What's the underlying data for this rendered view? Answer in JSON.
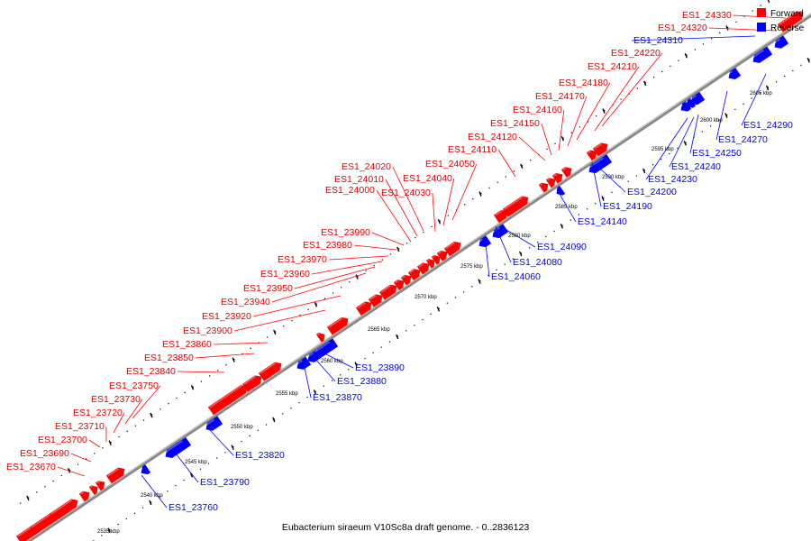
{
  "caption": "Eubacterium siraeum V10Sc8a draft genome. - 0..2836123",
  "legend": [
    {
      "label": "Forward",
      "color": "#ff0000"
    },
    {
      "label": "Reverse",
      "color": "#0000ff"
    }
  ],
  "colors": {
    "forward": "#ff0000",
    "reverse": "#0000ff",
    "axis": "#888888"
  },
  "forward_labels": [
    "ES1_24330",
    "ES1_24320",
    "ES1_24220",
    "ES1_24210",
    "ES1_24180",
    "ES1_24170",
    "ES1_24160",
    "ES1_24150",
    "ES1_24120",
    "ES1_24110",
    "ES1_24050",
    "ES1_24040",
    "ES1_24030",
    "ES1_24020",
    "ES1_24010",
    "ES1_24000",
    "ES1_23990",
    "ES1_23980",
    "ES1_23970",
    "ES1_23960",
    "ES1_23950",
    "ES1_23940",
    "ES1_23920",
    "ES1_23900",
    "ES1_23860",
    "ES1_23850",
    "ES1_23840",
    "ES1_23750",
    "ES1_23730",
    "ES1_23720",
    "ES1_23710",
    "ES1_23700",
    "ES1_23690",
    "ES1_23670"
  ],
  "reverse_labels": [
    "ES1_24310",
    "ES1_24290",
    "ES1_24270",
    "ES1_24250",
    "ES1_24240",
    "ES1_24230",
    "ES1_24200",
    "ES1_24190",
    "ES1_24140",
    "ES1_24090",
    "ES1_24080",
    "ES1_24060",
    "ES1_23890",
    "ES1_23880",
    "ES1_23870",
    "ES1_23820",
    "ES1_23790",
    "ES1_23760"
  ],
  "kbp_ticks": [
    "2535 kbp",
    "2540 kbp",
    "2545 kbp",
    "2550 kbp",
    "2555 kbp",
    "2560 kbp",
    "2565 kbp",
    "2570 kbp",
    "2575 kbp",
    "2580 kbp",
    "2585 kbp",
    "2590 kbp",
    "2595 kbp",
    "2600 kbp",
    "2605 kbp"
  ]
}
